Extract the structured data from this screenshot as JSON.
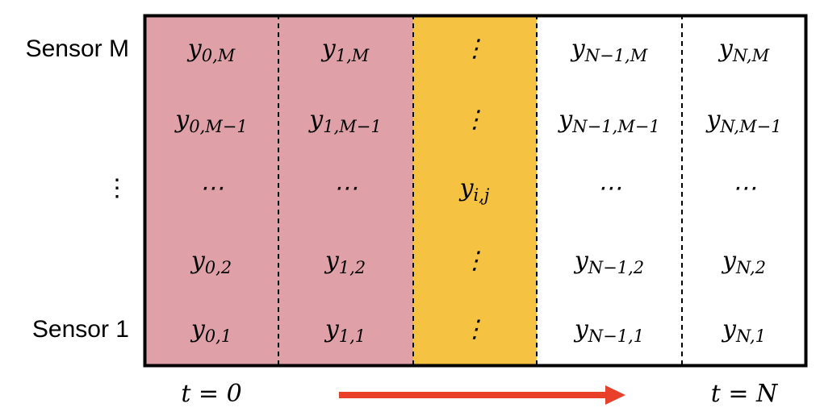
{
  "rows": [
    {
      "label": "Sensor M",
      "cells": [
        {
          "base": "y",
          "sub": "0,M"
        },
        {
          "base": "y",
          "sub": "1,M"
        },
        "⋮",
        {
          "base": "y",
          "sub": "N−1,M"
        },
        {
          "base": "y",
          "sub": "N,M"
        }
      ]
    },
    {
      "cells": [
        {
          "base": "y",
          "sub": "0,M−1"
        },
        {
          "base": "y",
          "sub": "1,M−1"
        },
        "⋮",
        {
          "base": "y",
          "sub": "N−1,M−1"
        },
        {
          "base": "y",
          "sub": "N,M−1"
        }
      ]
    },
    {
      "label": "⋮",
      "cells": [
        "⋯",
        "⋯",
        {
          "base": "y",
          "sub": "i,j"
        },
        "⋯",
        "⋯"
      ]
    },
    {
      "cells": [
        {
          "base": "y",
          "sub": "0,2"
        },
        {
          "base": "y",
          "sub": "1,2"
        },
        "⋮",
        {
          "base": "y",
          "sub": "N−1,2"
        },
        {
          "base": "y",
          "sub": "N,2"
        }
      ]
    },
    {
      "label": "Sensor 1",
      "cells": [
        {
          "base": "y",
          "sub": "0,1"
        },
        {
          "base": "y",
          "sub": "1,1"
        },
        "⋮",
        {
          "base": "y",
          "sub": "N−1,1"
        },
        {
          "base": "y",
          "sub": "N,1"
        }
      ]
    }
  ],
  "time_start": "t = 0",
  "time_end": "t = N"
}
